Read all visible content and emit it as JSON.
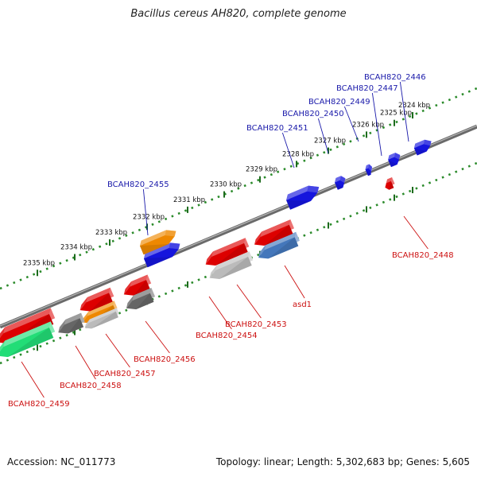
{
  "title": "Bacillus cereus AH820, complete genome",
  "footer": {
    "accession": "Accession: NC_011773",
    "summary": "Topology: linear; Length: 5,302,683 bp; Genes: 5,605"
  },
  "colors": {
    "forward_label": "#1a1aaa",
    "reverse_label": "#cc1111",
    "backbone": "#7a7a7a",
    "ruler": "#2a8a2a"
  },
  "ticks": [
    "2324 kbp",
    "2325 kbp",
    "2326 kbp",
    "2327 kbp",
    "2328 kbp",
    "2329 kbp",
    "2330 kbp",
    "2331 kbp",
    "2332 kbp",
    "2333 kbp",
    "2334 kbp",
    "2335 kbp"
  ],
  "forward_genes": [
    {
      "label": "BCAH820_2446",
      "color": "#1515dd"
    },
    {
      "label": "BCAH820_2447",
      "color": "#1515dd"
    },
    {
      "label": "BCAH820_2449",
      "color": "#1515dd"
    },
    {
      "label": "BCAH820_2450",
      "color": "#1515dd"
    },
    {
      "label": "BCAH820_2451",
      "color": "#1515dd"
    },
    {
      "label": "BCAH820_2455",
      "color": "#1515dd"
    },
    {
      "label": "",
      "color": "#ee8800"
    }
  ],
  "reverse_genes": [
    {
      "label": "BCAH820_2448",
      "color": "#dd0000"
    },
    {
      "label": "asd1",
      "color": "#4477bb"
    },
    {
      "label": "BCAH820_2453",
      "color": "#dd0000"
    },
    {
      "label": "BCAH820_2454",
      "color": "#dd0000"
    },
    {
      "label": "",
      "color": "#bbbbbb"
    },
    {
      "label": "BCAH820_2456",
      "color": "#dd0000"
    },
    {
      "label": "",
      "color": "#666666"
    },
    {
      "label": "BCAH820_2457",
      "color": "#ee8800"
    },
    {
      "label": "",
      "color": "#bbbbbb"
    },
    {
      "label": "",
      "color": "#dd0000"
    },
    {
      "label": "BCAH820_2458",
      "color": "#666666"
    },
    {
      "label": "BCAH820_2459",
      "color": "#dd0000"
    },
    {
      "label": "",
      "color": "#22dd77"
    }
  ]
}
